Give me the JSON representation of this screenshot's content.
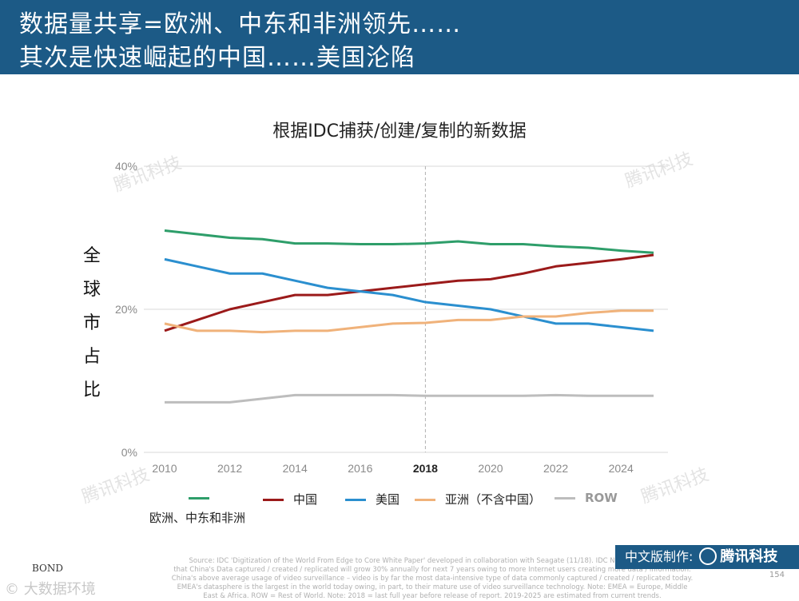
{
  "header": {
    "line1": "数据量共享=欧洲、中东和非洲领先……",
    "line2": "其次是快速崛起的中国……美国沦陷"
  },
  "chart_data": {
    "type": "line",
    "title": "根据IDC捕获/创建/复制的新数据",
    "ylabel": "全球市占比",
    "ylabel_chars": [
      "全",
      "球",
      "市",
      "占",
      "比"
    ],
    "y_ticks": [
      "0%",
      "20%",
      "40%"
    ],
    "ylim": [
      0,
      40
    ],
    "x_ticks": [
      "2010",
      "2012",
      "2014",
      "2016",
      "2018",
      "2020",
      "2022",
      "2024"
    ],
    "xlim": [
      2010,
      2025
    ],
    "highlight_year": 2018,
    "grid": true,
    "legend_position": "bottom",
    "x": [
      2010,
      2011,
      2012,
      2013,
      2014,
      2015,
      2016,
      2017,
      2018,
      2019,
      2020,
      2021,
      2022,
      2023,
      2024,
      2025
    ],
    "series": [
      {
        "name": "欧洲、中东和非洲",
        "color": "#2e9e6a",
        "values": [
          31.0,
          30.5,
          30.0,
          29.8,
          29.2,
          29.2,
          29.1,
          29.1,
          29.2,
          29.5,
          29.1,
          29.1,
          28.8,
          28.6,
          28.2,
          27.9
        ]
      },
      {
        "name": "中国",
        "color": "#9b1a1a",
        "values": [
          17.0,
          18.5,
          20.0,
          21.0,
          22.0,
          22.0,
          22.5,
          23.0,
          23.5,
          24.0,
          24.2,
          25.0,
          26.0,
          26.5,
          27.0,
          27.6
        ]
      },
      {
        "name": "美国",
        "color": "#2b8fcf",
        "values": [
          27.0,
          26.0,
          25.0,
          25.0,
          24.0,
          23.0,
          22.5,
          22.0,
          21.0,
          20.5,
          20.0,
          19.0,
          18.0,
          18.0,
          17.5,
          17.0
        ]
      },
      {
        "name": "亚洲（不含中国）",
        "color": "#f0b27a",
        "values": [
          18.0,
          17.0,
          17.0,
          16.8,
          17.0,
          17.0,
          17.5,
          18.0,
          18.1,
          18.5,
          18.5,
          19.0,
          19.0,
          19.5,
          19.8,
          19.8
        ]
      },
      {
        "name": "ROW",
        "color": "#bdbdbd",
        "values": [
          7.0,
          7.0,
          7.0,
          7.5,
          8.0,
          8.0,
          8.0,
          8.0,
          7.9,
          7.9,
          7.9,
          7.9,
          8.0,
          7.9,
          7.9,
          7.9
        ]
      }
    ]
  },
  "legend": {
    "emea_label": "欧洲、中东和非洲",
    "china_label": "中国",
    "us_label": "美国",
    "asia_label": "亚洲（不含中国）",
    "row_label": "ROW"
  },
  "footer": {
    "source_lines": [
      "Source: IDC 'Digitization of the World From Edge to Core White Paper' developed in collaboration with Seagate (11/18). IDC Note: IDC forecasts",
      "that China's Data captured / created / replicated will grow 30% annually for next 7 years owing to more Internet users creating more data / information.",
      "China's above average usage of video surveillance – video is by far the most data-intensive type of data commonly captured / created / replicated today.",
      "EMEA's datasphere is the largest in the world today owing, in part, to their mature use of video surveillance technology. Note: EMEA = Europe, Middle",
      "East & Africa. ROW = Rest of World. Note: 2018 = last full year before release of report. 2019-2025 are estimated from current trends."
    ],
    "page_number": "154",
    "credit_label": "中文版制作:",
    "credit_brand": "腾讯科技",
    "bond": "BOND",
    "watermark_bottom": "© 大数据环境"
  },
  "watermarks": [
    "腾讯科技",
    "腾讯科技",
    "腾讯科技",
    "腾讯科技"
  ]
}
